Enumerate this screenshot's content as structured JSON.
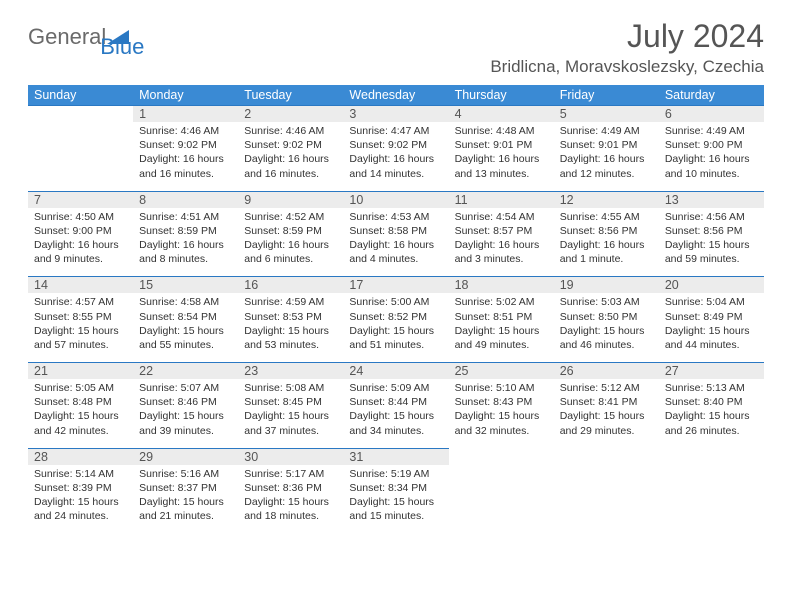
{
  "logo": {
    "part1": "General",
    "part2": "Blue"
  },
  "title": "July 2024",
  "location": "Bridlicna, Moravskoslezsky, Czechia",
  "colors": {
    "header_bg": "#3a8ad4",
    "border_blue": "#2a78c3",
    "daynum_bg": "#ececec",
    "text_gray": "#555555"
  },
  "day_headers": [
    "Sunday",
    "Monday",
    "Tuesday",
    "Wednesday",
    "Thursday",
    "Friday",
    "Saturday"
  ],
  "weeks": [
    {
      "nums": [
        "",
        "1",
        "2",
        "3",
        "4",
        "5",
        "6"
      ],
      "cells": [
        {},
        {
          "sr": "Sunrise: 4:46 AM",
          "ss": "Sunset: 9:02 PM",
          "d1": "Daylight: 16 hours",
          "d2": "and 16 minutes."
        },
        {
          "sr": "Sunrise: 4:46 AM",
          "ss": "Sunset: 9:02 PM",
          "d1": "Daylight: 16 hours",
          "d2": "and 16 minutes."
        },
        {
          "sr": "Sunrise: 4:47 AM",
          "ss": "Sunset: 9:02 PM",
          "d1": "Daylight: 16 hours",
          "d2": "and 14 minutes."
        },
        {
          "sr": "Sunrise: 4:48 AM",
          "ss": "Sunset: 9:01 PM",
          "d1": "Daylight: 16 hours",
          "d2": "and 13 minutes."
        },
        {
          "sr": "Sunrise: 4:49 AM",
          "ss": "Sunset: 9:01 PM",
          "d1": "Daylight: 16 hours",
          "d2": "and 12 minutes."
        },
        {
          "sr": "Sunrise: 4:49 AM",
          "ss": "Sunset: 9:00 PM",
          "d1": "Daylight: 16 hours",
          "d2": "and 10 minutes."
        }
      ]
    },
    {
      "nums": [
        "7",
        "8",
        "9",
        "10",
        "11",
        "12",
        "13"
      ],
      "cells": [
        {
          "sr": "Sunrise: 4:50 AM",
          "ss": "Sunset: 9:00 PM",
          "d1": "Daylight: 16 hours",
          "d2": "and 9 minutes."
        },
        {
          "sr": "Sunrise: 4:51 AM",
          "ss": "Sunset: 8:59 PM",
          "d1": "Daylight: 16 hours",
          "d2": "and 8 minutes."
        },
        {
          "sr": "Sunrise: 4:52 AM",
          "ss": "Sunset: 8:59 PM",
          "d1": "Daylight: 16 hours",
          "d2": "and 6 minutes."
        },
        {
          "sr": "Sunrise: 4:53 AM",
          "ss": "Sunset: 8:58 PM",
          "d1": "Daylight: 16 hours",
          "d2": "and 4 minutes."
        },
        {
          "sr": "Sunrise: 4:54 AM",
          "ss": "Sunset: 8:57 PM",
          "d1": "Daylight: 16 hours",
          "d2": "and 3 minutes."
        },
        {
          "sr": "Sunrise: 4:55 AM",
          "ss": "Sunset: 8:56 PM",
          "d1": "Daylight: 16 hours",
          "d2": "and 1 minute."
        },
        {
          "sr": "Sunrise: 4:56 AM",
          "ss": "Sunset: 8:56 PM",
          "d1": "Daylight: 15 hours",
          "d2": "and 59 minutes."
        }
      ]
    },
    {
      "nums": [
        "14",
        "15",
        "16",
        "17",
        "18",
        "19",
        "20"
      ],
      "cells": [
        {
          "sr": "Sunrise: 4:57 AM",
          "ss": "Sunset: 8:55 PM",
          "d1": "Daylight: 15 hours",
          "d2": "and 57 minutes."
        },
        {
          "sr": "Sunrise: 4:58 AM",
          "ss": "Sunset: 8:54 PM",
          "d1": "Daylight: 15 hours",
          "d2": "and 55 minutes."
        },
        {
          "sr": "Sunrise: 4:59 AM",
          "ss": "Sunset: 8:53 PM",
          "d1": "Daylight: 15 hours",
          "d2": "and 53 minutes."
        },
        {
          "sr": "Sunrise: 5:00 AM",
          "ss": "Sunset: 8:52 PM",
          "d1": "Daylight: 15 hours",
          "d2": "and 51 minutes."
        },
        {
          "sr": "Sunrise: 5:02 AM",
          "ss": "Sunset: 8:51 PM",
          "d1": "Daylight: 15 hours",
          "d2": "and 49 minutes."
        },
        {
          "sr": "Sunrise: 5:03 AM",
          "ss": "Sunset: 8:50 PM",
          "d1": "Daylight: 15 hours",
          "d2": "and 46 minutes."
        },
        {
          "sr": "Sunrise: 5:04 AM",
          "ss": "Sunset: 8:49 PM",
          "d1": "Daylight: 15 hours",
          "d2": "and 44 minutes."
        }
      ]
    },
    {
      "nums": [
        "21",
        "22",
        "23",
        "24",
        "25",
        "26",
        "27"
      ],
      "cells": [
        {
          "sr": "Sunrise: 5:05 AM",
          "ss": "Sunset: 8:48 PM",
          "d1": "Daylight: 15 hours",
          "d2": "and 42 minutes."
        },
        {
          "sr": "Sunrise: 5:07 AM",
          "ss": "Sunset: 8:46 PM",
          "d1": "Daylight: 15 hours",
          "d2": "and 39 minutes."
        },
        {
          "sr": "Sunrise: 5:08 AM",
          "ss": "Sunset: 8:45 PM",
          "d1": "Daylight: 15 hours",
          "d2": "and 37 minutes."
        },
        {
          "sr": "Sunrise: 5:09 AM",
          "ss": "Sunset: 8:44 PM",
          "d1": "Daylight: 15 hours",
          "d2": "and 34 minutes."
        },
        {
          "sr": "Sunrise: 5:10 AM",
          "ss": "Sunset: 8:43 PM",
          "d1": "Daylight: 15 hours",
          "d2": "and 32 minutes."
        },
        {
          "sr": "Sunrise: 5:12 AM",
          "ss": "Sunset: 8:41 PM",
          "d1": "Daylight: 15 hours",
          "d2": "and 29 minutes."
        },
        {
          "sr": "Sunrise: 5:13 AM",
          "ss": "Sunset: 8:40 PM",
          "d1": "Daylight: 15 hours",
          "d2": "and 26 minutes."
        }
      ]
    },
    {
      "nums": [
        "28",
        "29",
        "30",
        "31",
        "",
        "",
        ""
      ],
      "cells": [
        {
          "sr": "Sunrise: 5:14 AM",
          "ss": "Sunset: 8:39 PM",
          "d1": "Daylight: 15 hours",
          "d2": "and 24 minutes."
        },
        {
          "sr": "Sunrise: 5:16 AM",
          "ss": "Sunset: 8:37 PM",
          "d1": "Daylight: 15 hours",
          "d2": "and 21 minutes."
        },
        {
          "sr": "Sunrise: 5:17 AM",
          "ss": "Sunset: 8:36 PM",
          "d1": "Daylight: 15 hours",
          "d2": "and 18 minutes."
        },
        {
          "sr": "Sunrise: 5:19 AM",
          "ss": "Sunset: 8:34 PM",
          "d1": "Daylight: 15 hours",
          "d2": "and 15 minutes."
        },
        {},
        {},
        {}
      ]
    }
  ]
}
